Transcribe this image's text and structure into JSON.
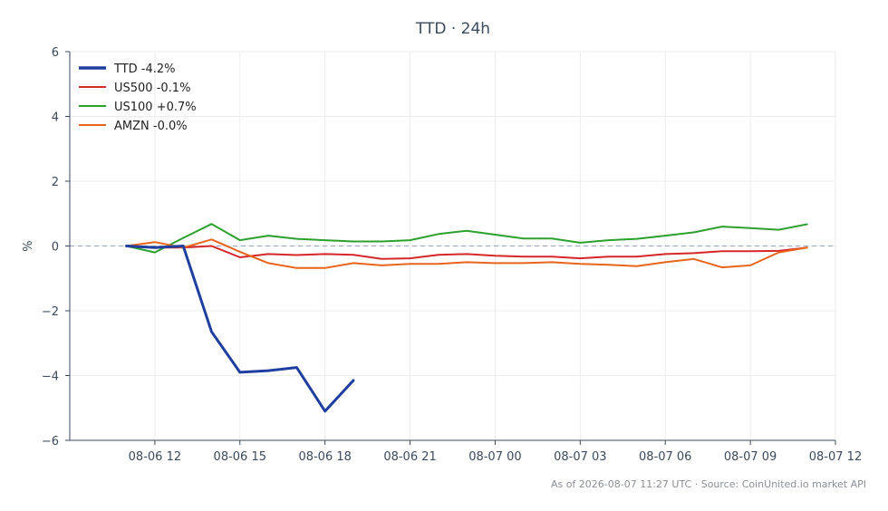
{
  "chart_data": {
    "type": "line",
    "title": "TTD · 24h",
    "xlabel": "",
    "ylabel": "%",
    "ylim": [
      -6,
      6
    ],
    "yticks": [
      -6,
      -4,
      -2,
      0,
      2,
      4,
      6
    ],
    "ytick_labels": [
      "−6",
      "−4",
      "−2",
      "0",
      "2",
      "4",
      "6"
    ],
    "xlim": [
      "2026-08-06 09:00",
      "2026-08-07 12:00"
    ],
    "xticks": [
      "2026-08-06 12:00",
      "2026-08-06 15:00",
      "2026-08-06 18:00",
      "2026-08-06 21:00",
      "2026-08-07 00:00",
      "2026-08-07 03:00",
      "2026-08-07 06:00",
      "2026-08-07 09:00",
      "2026-08-07 12:00"
    ],
    "xtick_labels": [
      "08-06 12",
      "08-06 15",
      "08-06 18",
      "08-06 21",
      "08-07 00",
      "08-07 03",
      "08-07 06",
      "08-07 09",
      "08-07 12"
    ],
    "grid": true,
    "baseline": 0,
    "legend_position": "top-left",
    "series": [
      {
        "name": "TTD -4.2%",
        "color": "#1f3fa0",
        "x": [
          "2026-08-06 11:00",
          "2026-08-06 12:00",
          "2026-08-06 13:00",
          "2026-08-06 14:00",
          "2026-08-06 15:00",
          "2026-08-06 16:00",
          "2026-08-06 17:00",
          "2026-08-06 18:00",
          "2026-08-06 19:00"
        ],
        "y": [
          0,
          -0.05,
          0,
          -2.65,
          -3.9,
          -3.85,
          -3.75,
          -5.1,
          -4.15
        ]
      },
      {
        "name": "US500 -0.1%",
        "color": "#d62728",
        "x": [
          "2026-08-06 11:00",
          "2026-08-06 12:00",
          "2026-08-06 13:00",
          "2026-08-06 14:00",
          "2026-08-06 15:00",
          "2026-08-06 16:00",
          "2026-08-06 17:00",
          "2026-08-06 18:00",
          "2026-08-06 19:00",
          "2026-08-06 20:00",
          "2026-08-06 21:00",
          "2026-08-06 22:00",
          "2026-08-06 23:00",
          "2026-08-07 00:00",
          "2026-08-07 01:00",
          "2026-08-07 02:00",
          "2026-08-07 03:00",
          "2026-08-07 04:00",
          "2026-08-07 05:00",
          "2026-08-07 06:00",
          "2026-08-07 07:00",
          "2026-08-07 08:00",
          "2026-08-07 09:00",
          "2026-08-07 10:00",
          "2026-08-07 11:00"
        ],
        "y": [
          0,
          -0.05,
          -0.05,
          0,
          -0.35,
          -0.25,
          -0.28,
          -0.25,
          -0.27,
          -0.4,
          -0.38,
          -0.27,
          -0.25,
          -0.3,
          -0.33,
          -0.33,
          -0.38,
          -0.33,
          -0.33,
          -0.25,
          -0.22,
          -0.16,
          -0.16,
          -0.15,
          -0.05
        ]
      },
      {
        "name": "US100 +0.7%",
        "color": "#2ca02c",
        "x": [
          "2026-08-06 11:00",
          "2026-08-06 12:00",
          "2026-08-06 13:00",
          "2026-08-06 14:00",
          "2026-08-06 15:00",
          "2026-08-06 16:00",
          "2026-08-06 17:00",
          "2026-08-06 18:00",
          "2026-08-06 19:00",
          "2026-08-06 20:00",
          "2026-08-06 21:00",
          "2026-08-06 22:00",
          "2026-08-06 23:00",
          "2026-08-07 00:00",
          "2026-08-07 01:00",
          "2026-08-07 02:00",
          "2026-08-07 03:00",
          "2026-08-07 04:00",
          "2026-08-07 05:00",
          "2026-08-07 06:00",
          "2026-08-07 07:00",
          "2026-08-07 08:00",
          "2026-08-07 09:00",
          "2026-08-07 10:00",
          "2026-08-07 11:00"
        ],
        "y": [
          0,
          -0.2,
          0.25,
          0.68,
          0.18,
          0.32,
          0.22,
          0.18,
          0.14,
          0.14,
          0.18,
          0.37,
          0.47,
          0.35,
          0.23,
          0.23,
          0.1,
          0.18,
          0.22,
          0.32,
          0.42,
          0.6,
          0.55,
          0.5,
          0.67
        ]
      },
      {
        "name": "AMZN -0.0%",
        "color": "#e8641a",
        "x": [
          "2026-08-06 11:00",
          "2026-08-06 12:00",
          "2026-08-06 13:00",
          "2026-08-06 14:00",
          "2026-08-06 15:00",
          "2026-08-06 16:00",
          "2026-08-06 17:00",
          "2026-08-06 18:00",
          "2026-08-06 19:00",
          "2026-08-06 20:00",
          "2026-08-06 21:00",
          "2026-08-06 22:00",
          "2026-08-06 23:00",
          "2026-08-07 00:00",
          "2026-08-07 01:00",
          "2026-08-07 02:00",
          "2026-08-07 03:00",
          "2026-08-07 04:00",
          "2026-08-07 05:00",
          "2026-08-07 06:00",
          "2026-08-07 07:00",
          "2026-08-07 08:00",
          "2026-08-07 09:00",
          "2026-08-07 10:00",
          "2026-08-07 11:00"
        ],
        "y": [
          0,
          0.12,
          -0.05,
          0.2,
          -0.18,
          -0.53,
          -0.68,
          -0.68,
          -0.53,
          -0.6,
          -0.55,
          -0.55,
          -0.5,
          -0.53,
          -0.53,
          -0.5,
          -0.55,
          -0.58,
          -0.62,
          -0.5,
          -0.4,
          -0.66,
          -0.6,
          -0.2,
          -0.05
        ]
      }
    ]
  },
  "footer": "As of 2026-08-07 11:27 UTC · Source: CoinUnited.io market API"
}
